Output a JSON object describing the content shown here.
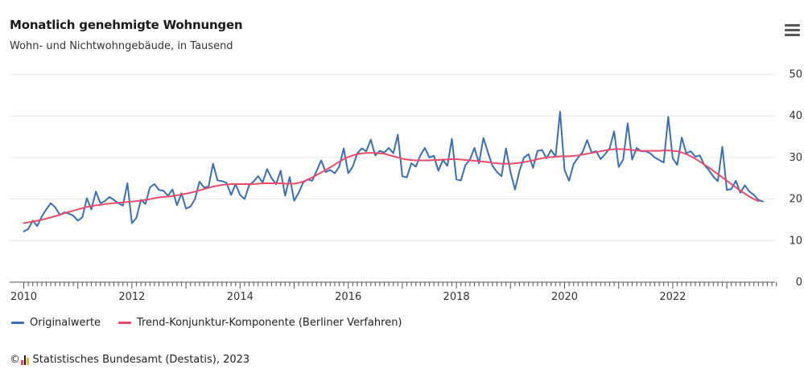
{
  "title": "Monatlich genehmigte Wohnungen",
  "subtitle": "Wohn- und Nichtwohngebäude, in Tausend",
  "menu_icon": "hamburger-menu-icon",
  "colors": {
    "original": "#3b6eb5",
    "trend": "#e94b6b",
    "grid": "#e6e6e6",
    "axis": "#555555"
  },
  "legend": {
    "original": "Originalwerte",
    "trend": "Trend-Konjunktur-Komponente (Berliner Verfahren)"
  },
  "footer": {
    "copyright": "©",
    "source": "Statistisches Bundesamt (Destatis), 2023"
  },
  "chart_data": {
    "type": "line",
    "title": "Monatlich genehmigte Wohnungen",
    "subtitle": "Wohn- und Nichtwohngebäude, in Tausend",
    "xlabel": "",
    "ylabel": "",
    "xlim": [
      2010,
      2023.92
    ],
    "ylim": [
      0,
      50
    ],
    "y_ticks": [
      0,
      10,
      20,
      30,
      40,
      50
    ],
    "x_ticks": [
      2010,
      2012,
      2014,
      2016,
      2018,
      2020,
      2022
    ],
    "grid": "horizontal",
    "legend_position": "bottom-left",
    "x_start": "2010-01",
    "x_step": "monthly",
    "series": [
      {
        "name": "Originalwerte",
        "values": [
          12.2,
          12.8,
          14.8,
          13.5,
          15.8,
          17.5,
          19.0,
          18.0,
          16.2,
          16.8,
          16.5,
          16.0,
          14.8,
          15.6,
          20.2,
          17.5,
          21.8,
          19.0,
          19.5,
          20.5,
          19.8,
          19.0,
          18.4,
          23.8,
          14.2,
          15.5,
          19.8,
          18.8,
          22.8,
          23.6,
          22.2,
          22.0,
          20.8,
          22.3,
          18.5,
          21.4,
          17.7,
          18.2,
          20.0,
          24.2,
          22.8,
          23.0,
          28.5,
          24.5,
          24.3,
          23.9,
          21.0,
          23.6,
          21.0,
          20.0,
          23.3,
          24.2,
          25.5,
          24.0,
          27.2,
          25.0,
          23.6,
          26.8,
          20.8,
          25.3,
          19.6,
          21.5,
          24.0,
          24.7,
          24.4,
          26.8,
          29.3,
          26.5,
          27.0,
          26.2,
          27.8,
          32.2,
          26.2,
          27.8,
          31.0,
          32.2,
          31.5,
          34.3,
          30.5,
          31.6,
          31.2,
          32.3,
          31.0,
          35.5,
          25.5,
          25.2,
          28.6,
          27.8,
          30.5,
          32.3,
          30.0,
          30.4,
          26.8,
          29.4,
          28.0,
          34.5,
          24.7,
          24.5,
          28.2,
          29.5,
          32.3,
          28.6,
          34.7,
          31.2,
          28.0,
          26.5,
          25.5,
          32.2,
          26.5,
          22.3,
          26.8,
          30.0,
          30.8,
          27.5,
          31.6,
          31.8,
          29.8,
          31.8,
          30.2,
          41.0,
          27.0,
          24.4,
          28.4,
          30.0,
          31.3,
          34.2,
          31.2,
          31.5,
          29.6,
          30.8,
          32.2,
          36.3,
          27.7,
          29.5,
          38.2,
          29.5,
          32.3,
          31.5,
          31.5,
          31.0,
          30.0,
          29.4,
          28.8,
          39.8,
          29.8,
          28.2,
          34.8,
          31.0,
          31.5,
          30.2,
          30.5,
          28.2,
          27.0,
          25.4,
          24.3,
          32.6,
          22.2,
          22.4,
          24.4,
          21.5,
          23.3,
          21.8,
          21.0,
          19.8,
          19.4
        ]
      },
      {
        "name": "Trend-Konjunktur-Komponente (Berliner Verfahren)",
        "values": [
          14.2,
          14.4,
          14.6,
          14.8,
          15.0,
          15.3,
          15.6,
          15.9,
          16.2,
          16.6,
          16.9,
          17.2,
          17.5,
          17.8,
          18.1,
          18.3,
          18.5,
          18.6,
          18.8,
          18.9,
          19.0,
          19.1,
          19.2,
          19.3,
          19.4,
          19.5,
          19.6,
          19.8,
          20.0,
          20.2,
          20.4,
          20.5,
          20.6,
          20.7,
          20.9,
          21.1,
          21.3,
          21.5,
          21.8,
          22.1,
          22.4,
          22.7,
          23.0,
          23.2,
          23.4,
          23.5,
          23.6,
          23.6,
          23.6,
          23.6,
          23.6,
          23.6,
          23.7,
          23.8,
          23.8,
          23.8,
          23.8,
          23.8,
          23.7,
          23.7,
          23.7,
          23.9,
          24.2,
          24.7,
          25.2,
          25.8,
          26.4,
          27.0,
          27.6,
          28.3,
          29.0,
          29.6,
          30.1,
          30.5,
          30.8,
          31.0,
          31.1,
          31.1,
          31.1,
          31.0,
          30.9,
          30.6,
          30.3,
          30.0,
          29.7,
          29.5,
          29.4,
          29.3,
          29.3,
          29.3,
          29.3,
          29.4,
          29.4,
          29.5,
          29.5,
          29.6,
          29.6,
          29.5,
          29.4,
          29.3,
          29.2,
          29.1,
          29.0,
          28.9,
          28.7,
          28.6,
          28.5,
          28.5,
          28.5,
          28.6,
          28.7,
          28.9,
          29.1,
          29.3,
          29.6,
          29.8,
          30.0,
          30.1,
          30.2,
          30.3,
          30.3,
          30.3,
          30.4,
          30.5,
          30.7,
          30.9,
          31.1,
          31.3,
          31.5,
          31.7,
          31.9,
          32.0,
          32.0,
          32.0,
          31.9,
          31.8,
          31.7,
          31.6,
          31.6,
          31.6,
          31.6,
          31.6,
          31.7,
          31.7,
          31.6,
          31.5,
          31.2,
          30.8,
          30.3,
          29.7,
          29.0,
          28.3,
          27.6,
          26.8,
          26.0,
          25.2,
          24.4,
          23.6,
          22.8,
          22.0,
          21.3,
          20.6,
          20.0,
          19.5
        ]
      }
    ]
  }
}
